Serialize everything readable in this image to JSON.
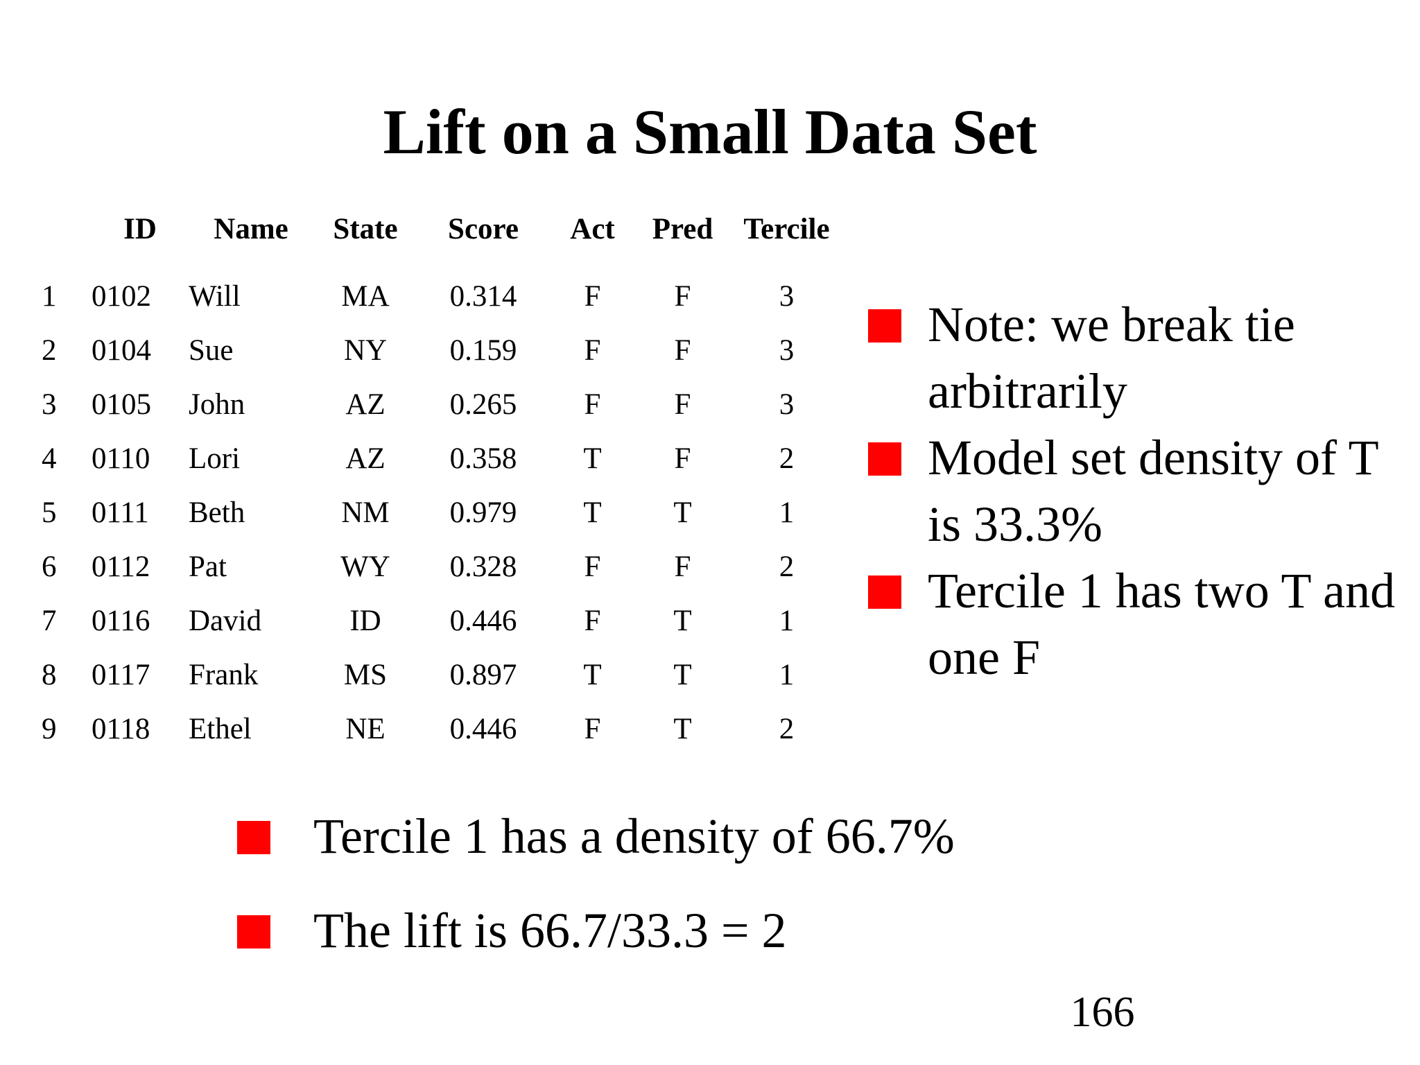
{
  "slide": {
    "title": "Lift on a Small Data Set",
    "page_number": "166"
  },
  "table": {
    "columns": [
      "",
      "ID",
      "Name",
      "State",
      "Score",
      "Act",
      "Pred",
      "Tercile"
    ],
    "rows": [
      [
        "1",
        "0102",
        "Will",
        "MA",
        "0.314",
        "F",
        "F",
        "3"
      ],
      [
        "2",
        "0104",
        "Sue",
        "NY",
        "0.159",
        "F",
        "F",
        "3"
      ],
      [
        "3",
        "0105",
        "John",
        "AZ",
        "0.265",
        "F",
        "F",
        "3"
      ],
      [
        "4",
        "0110",
        "Lori",
        "AZ",
        "0.358",
        "T",
        "F",
        "2"
      ],
      [
        "5",
        "0111",
        "Beth",
        "NM",
        "0.979",
        "T",
        "T",
        "1"
      ],
      [
        "6",
        "0112",
        "Pat",
        "WY",
        "0.328",
        "F",
        "F",
        "2"
      ],
      [
        "7",
        "0116",
        "David",
        "ID",
        "0.446",
        "F",
        "T",
        "1"
      ],
      [
        "8",
        "0117",
        "Frank",
        "MS",
        "0.897",
        "T",
        "T",
        "1"
      ],
      [
        "9",
        "0118",
        "Ethel",
        "NE",
        "0.446",
        "F",
        "T",
        "2"
      ]
    ]
  },
  "right_bullets": [
    "Note: we break tie arbitrarily",
    "Model set density of T is 33.3%",
    "Tercile 1 has two T and one F"
  ],
  "bottom_bullets": [
    "Tercile 1 has a density of 66.7%",
    "The lift is 66.7/33.3 = 2"
  ],
  "colors": {
    "bullet": "#ff0000",
    "text": "#000000",
    "background": "#ffffff"
  },
  "icons": {
    "bullet": "red-square-bullet-icon"
  }
}
